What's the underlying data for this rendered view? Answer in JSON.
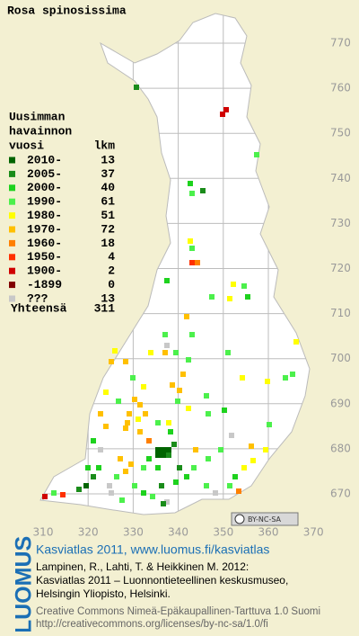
{
  "title": "Rosa spinosissima",
  "legend": {
    "heading": [
      "Uusimman",
      "havainnon",
      "vuosi"
    ],
    "count_heading": "lkm",
    "items": [
      {
        "label": "2010-",
        "count": 13,
        "color": "#006400"
      },
      {
        "label": "2005-",
        "count": 37,
        "color": "#1a8c1a"
      },
      {
        "label": "2000-",
        "count": 40,
        "color": "#1ed21e"
      },
      {
        "label": "1990-",
        "count": 61,
        "color": "#4cf04c"
      },
      {
        "label": "1980-",
        "count": 51,
        "color": "#ffff00"
      },
      {
        "label": "1970-",
        "count": 72,
        "color": "#ffc000"
      },
      {
        "label": "1960-",
        "count": 18,
        "color": "#ff8000"
      },
      {
        "label": "1950-",
        "count": 4,
        "color": "#ff3000"
      },
      {
        "label": "1900-",
        "count": 2,
        "color": "#d00000"
      },
      {
        "label": "-1899",
        "count": 0,
        "color": "#800000"
      },
      {
        "label": "???",
        "count": 13,
        "color": "#c8c8c8"
      }
    ],
    "total_label": "Yhteensä",
    "total": 311
  },
  "grid": {
    "y_ticks": [
      770,
      760,
      750,
      740,
      730,
      720,
      710,
      700,
      690,
      680,
      670
    ],
    "x_ticks": [
      310,
      320,
      330,
      340,
      350,
      360,
      370
    ]
  },
  "license_badge": "BY-NC-SA",
  "footer": {
    "logo": "LUOMUS",
    "heading": "Kasviatlas 2011, www.luomus.fi/kasviatlas",
    "citation": [
      "Lampinen, R., Lahti, T. & Heikkinen M. 2012:",
      "Kasviatlas 2011 – Luonnontieteellinen keskusmuseo,",
      "Helsingin Yliopisto, Helsinki."
    ],
    "license": [
      "Creative Commons Nimeä-Epäkaupallinen-Tarttuva 1.0 Suomi",
      "http://creativecommons.org/licenses/by-nc-sa/1.0/fi"
    ]
  }
}
